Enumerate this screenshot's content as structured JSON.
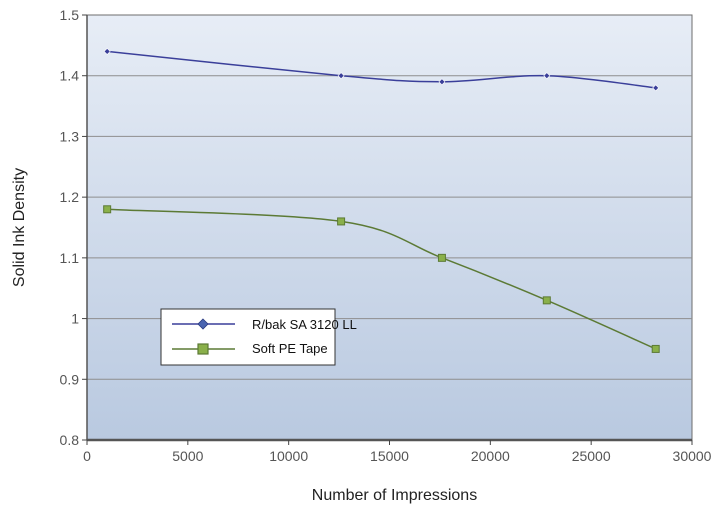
{
  "chart_data": {
    "type": "line",
    "title": "",
    "xlabel": "Number of Impressions",
    "ylabel": "Solid Ink Density",
    "xlim": [
      0,
      30000
    ],
    "ylim": [
      0.8,
      1.5
    ],
    "xticks": [
      "0",
      "5000",
      "10000",
      "15000",
      "20000",
      "25000",
      "30000"
    ],
    "yticks": [
      "0.8",
      "0.9",
      "1",
      "1.1",
      "1.2",
      "1.3",
      "1.4",
      "1.5"
    ],
    "grid": "horizontal",
    "legend_position": "lower-left",
    "series": [
      {
        "name": "R/bak SA 3120 LL",
        "color": "#3a3f9a",
        "marker": "diamond",
        "x": [
          1000,
          12600,
          17600,
          22800,
          28200
        ],
        "y": [
          1.44,
          1.4,
          1.39,
          1.4,
          1.38
        ]
      },
      {
        "name": "Soft PE Tape",
        "color": "#5c7a35",
        "marker_fill": "#8ab04a",
        "marker": "square",
        "x": [
          1000,
          12600,
          17600,
          22800,
          28200
        ],
        "y": [
          1.18,
          1.16,
          1.1,
          1.03,
          0.95
        ]
      }
    ]
  }
}
